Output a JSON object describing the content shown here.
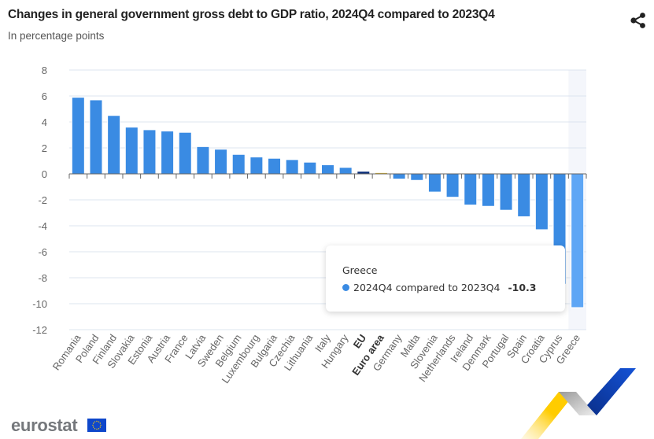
{
  "header": {
    "title": "Changes in general government gross debt to GDP ratio, 2024Q4 compared to 2023Q4",
    "subtitle": "In percentage points",
    "share_icon": "share-icon"
  },
  "tooltip": {
    "country": "Greece",
    "series_label": "2024Q4 compared to 2023Q4",
    "value": "-10.3"
  },
  "footer": {
    "logo_text": "eurostat",
    "flag_icon": "eu-flag-icon"
  },
  "colors": {
    "bar": "#3a8be3",
    "bar_highlight": "#5ea6f5",
    "eu": "#0b2e7a",
    "euro_area": "#e0b52a",
    "highlight_band": "#f4f6fb",
    "grid": "#dde4ef"
  },
  "chart_data": {
    "type": "bar",
    "title": "Changes in general government gross debt to GDP ratio, 2024Q4 compared to 2023Q4",
    "subtitle": "In percentage points",
    "xlabel": "",
    "ylabel": "",
    "ylim": [
      -12,
      8
    ],
    "yticks": [
      8,
      6,
      4,
      2,
      0,
      -2,
      -4,
      -6,
      -8,
      -10,
      -12
    ],
    "grid": true,
    "legend": "none",
    "highlighted_category": "Greece",
    "categories": [
      "Romania",
      "Poland",
      "Finland",
      "Slovakia",
      "Estonia",
      "Austria",
      "France",
      "Latvia",
      "Sweden",
      "Belgium",
      "Luxembourg",
      "Bulgaria",
      "Czechia",
      "Lithuania",
      "Italy",
      "Hungary",
      "EU",
      "Euro area",
      "Germany",
      "Malta",
      "Slovenia",
      "Netherlands",
      "Ireland",
      "Denmark",
      "Portugal",
      "Spain",
      "Croatia",
      "Cyprus",
      "Greece"
    ],
    "bold_categories": [
      "EU",
      "Euro area"
    ],
    "series": [
      {
        "name": "2024Q4 compared to 2023Q4",
        "values": [
          5.9,
          5.7,
          4.5,
          3.6,
          3.4,
          3.3,
          3.2,
          2.1,
          1.9,
          1.5,
          1.3,
          1.2,
          1.1,
          0.9,
          0.7,
          0.5,
          0.2,
          0.1,
          -0.4,
          -0.5,
          -1.4,
          -1.8,
          -2.4,
          -2.5,
          -2.8,
          -3.3,
          -4.3,
          -8.5,
          -10.3
        ]
      }
    ]
  }
}
